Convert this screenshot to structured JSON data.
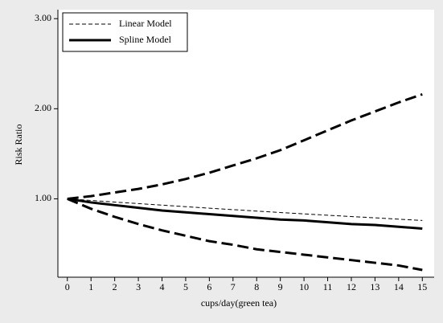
{
  "chart_data": {
    "type": "line",
    "x_label": "cups/day(green tea)",
    "y_label": "Risk Ratio",
    "x": [
      0,
      1,
      2,
      3,
      4,
      5,
      6,
      7,
      8,
      9,
      10,
      11,
      12,
      13,
      14,
      15
    ],
    "series": [
      {
        "name": "Linear Model",
        "color": "#000000",
        "dash": true,
        "width": 1,
        "values": [
          1.0,
          0.982,
          0.964,
          0.947,
          0.93,
          0.913,
          0.896,
          0.88,
          0.864,
          0.848,
          0.833,
          0.818,
          0.803,
          0.789,
          0.774,
          0.76
        ]
      },
      {
        "name": "Spline Model",
        "color": "#000000",
        "dash": false,
        "width": 3,
        "values": [
          1.0,
          0.96,
          0.93,
          0.9,
          0.87,
          0.85,
          0.83,
          0.81,
          0.79,
          0.77,
          0.76,
          0.74,
          0.72,
          0.71,
          0.69,
          0.67
        ]
      },
      {
        "color": "#000000",
        "dash": true,
        "width": 3,
        "values": [
          1.0,
          1.03,
          1.07,
          1.11,
          1.16,
          1.22,
          1.29,
          1.37,
          1.45,
          1.54,
          1.65,
          1.76,
          1.87,
          1.97,
          2.07,
          2.16
        ]
      },
      {
        "color": "#000000",
        "dash": true,
        "width": 3,
        "values": [
          1.0,
          0.89,
          0.8,
          0.72,
          0.65,
          0.59,
          0.53,
          0.49,
          0.44,
          0.41,
          0.38,
          0.35,
          0.32,
          0.29,
          0.26,
          0.21
        ]
      }
    ],
    "xlim": [
      -0.4,
      15.5
    ],
    "ylim": [
      0.13,
      3.1
    ],
    "xticks": [
      0,
      1,
      2,
      3,
      4,
      5,
      6,
      7,
      8,
      9,
      10,
      11,
      12,
      13,
      14,
      15
    ],
    "yticks": [
      {
        "value": 1,
        "label": "1.00"
      },
      {
        "value": 2,
        "label": "2.00"
      },
      {
        "value": 3,
        "label": "3.00"
      }
    ],
    "legend": "upper-left",
    "grid": false
  }
}
